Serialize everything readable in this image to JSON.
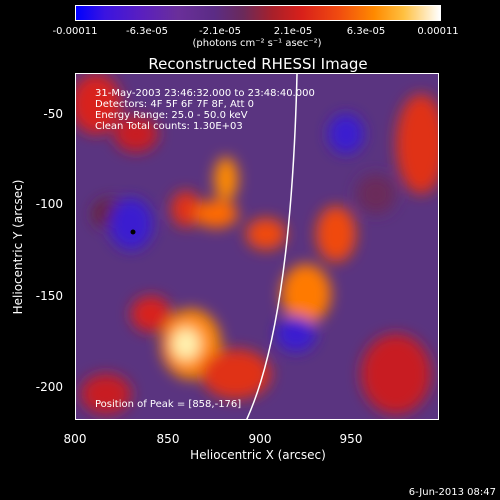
{
  "colorbar": {
    "ticks": [
      "-0.00011",
      "-6.3e-05",
      "-2.1e-05",
      "2.1e-05",
      "6.3e-05",
      "0.00011"
    ],
    "units": "(photons cm⁻² s⁻¹ asec⁻²)"
  },
  "title": "Reconstructed RHESSI Image",
  "info_lines": [
    "31-May-2003 23:46:32.000 to 23:48:40.000",
    "Detectors: 4F 5F 6F 7F 8F, Att 0",
    "Energy Range: 25.0 - 50.0 keV",
    "Clean      Total counts: 1.30E+03"
  ],
  "peak_label": "Position of Peak = [858,-176]",
  "axes": {
    "xlabel": "Heliocentric X (arcsec)",
    "ylabel": "Heliocentric Y (arcsec)",
    "xticks": [
      "800",
      "850",
      "900",
      "950"
    ],
    "yticks": [
      "-50",
      "-100",
      "-150",
      "-200"
    ]
  },
  "date_stamp": "6-Jun-2013 08:47",
  "colors": {
    "background": "#000000",
    "limb": "#ffffff"
  }
}
